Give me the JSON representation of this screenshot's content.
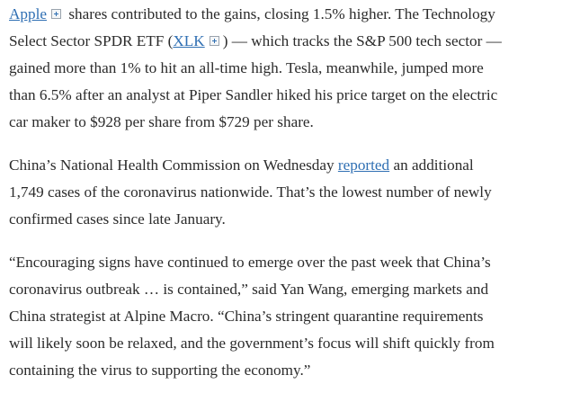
{
  "paragraphs": [
    {
      "lines": [
        [
          {
            "text": "Apple",
            "link": true,
            "icon": true
          },
          {
            "text": " shares contributed to the gains, closing 1.5% higher. The Technology"
          }
        ],
        [
          {
            "text": "Select Sector SPDR ETF ("
          },
          {
            "text": "XLK",
            "link": true,
            "icon": true
          },
          {
            "text": ") — which tracks the S&P 500 tech sector —"
          }
        ],
        [
          {
            "text": "gained more than 1% to hit an all-time high. Tesla, meanwhile, jumped more"
          }
        ],
        [
          {
            "text": "than 6.5% after an analyst at Piper Sandler hiked his price target on the electric"
          }
        ],
        [
          {
            "text": "car maker to $928 per share from $729 per share."
          }
        ]
      ]
    },
    {
      "lines": [
        [
          {
            "text": "China’s National Health Commission on Wednesday "
          },
          {
            "text": "reported",
            "link": true
          },
          {
            "text": " an additional"
          }
        ],
        [
          {
            "text": "1,749 cases of the coronavirus nationwide. That’s the lowest number of newly"
          }
        ],
        [
          {
            "text": "confirmed cases since late January."
          }
        ]
      ]
    },
    {
      "lines": [
        [
          {
            "text": "“Encouraging signs have continued to emerge over the past week that China’s"
          }
        ],
        [
          {
            "text": "coronavirus outbreak … is contained,” said Yan Wang, emerging markets and"
          }
        ],
        [
          {
            "text": "China strategist at Alpine Macro. “China’s stringent quarantine requirements"
          }
        ],
        [
          {
            "text": "will likely soon be relaxed, and the government’s focus will shift quickly from"
          }
        ],
        [
          {
            "text": "containing the virus to supporting the economy.”"
          }
        ]
      ]
    }
  ]
}
